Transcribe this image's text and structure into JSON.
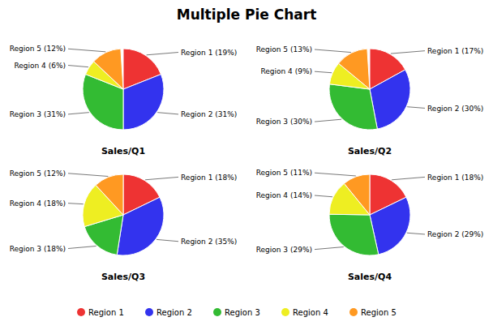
{
  "chart_data": {
    "type": "pie",
    "title": "Multiple Pie Chart",
    "categories": [
      "Region 1",
      "Region 2",
      "Region 3",
      "Region 4",
      "Region 5"
    ],
    "colors": [
      "#ee3333",
      "#3333ee",
      "#33bb33",
      "#eeee22",
      "#ff9922"
    ],
    "legend": "bottom",
    "data_labels": true,
    "series": [
      {
        "name": "Sales/Q1",
        "values": [
          19,
          31,
          31,
          6,
          12
        ],
        "value_labels": [
          "Region 1 (19%)",
          "Region 2 (31%)",
          "Region 3 (31%)",
          "Region 4 (6%)",
          "Region 5 (12%)"
        ]
      },
      {
        "name": "Sales/Q2",
        "values": [
          17,
          30,
          30,
          9,
          13
        ],
        "value_labels": [
          "Region 1 (17%)",
          "Region 2 (30%)",
          "Region 3 (30%)",
          "Region 4 (9%)",
          "Region 5 (13%)"
        ]
      },
      {
        "name": "Sales/Q3",
        "values": [
          18,
          35,
          18,
          18,
          12
        ],
        "value_labels": [
          "Region 1 (18%)",
          "Region 2 (35%)",
          "Region 3 (18%)",
          "Region 4 (18%)",
          "Region 5 (12%)"
        ]
      },
      {
        "name": "Sales/Q4",
        "values": [
          18,
          29,
          29,
          14,
          11
        ],
        "value_labels": [
          "Region 1 (18%)",
          "Region 2 (29%)",
          "Region 3 (29%)",
          "Region 4 (14%)",
          "Region 5 (11%)"
        ]
      }
    ]
  }
}
